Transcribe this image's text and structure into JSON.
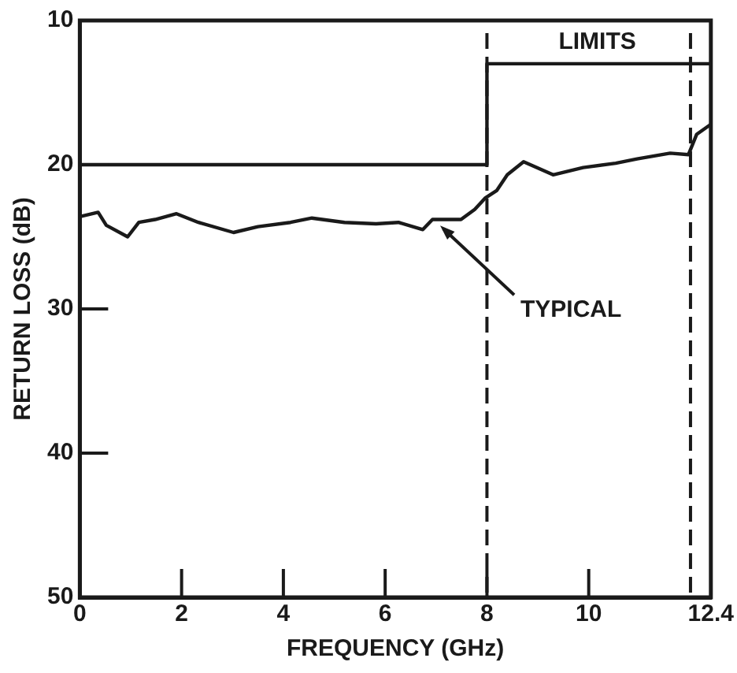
{
  "chart_data": {
    "type": "line",
    "xlabel": "FREQUENCY (GHz)",
    "ylabel": "RETURN LOSS (dB)",
    "xlim": [
      0,
      12.4
    ],
    "xticks": [
      0,
      2,
      4,
      6,
      8,
      10,
      12.4
    ],
    "ylim": [
      50,
      10
    ],
    "yticks": [
      10,
      20,
      30,
      40,
      50
    ],
    "grid": false,
    "legend": false,
    "marker": "none",
    "line_style": "solid",
    "series": [
      {
        "color": "#1a1a1a",
        "x": [
          0,
          0.36,
          0.52,
          0.94,
          1.16,
          1.48,
          1.9,
          2.33,
          3.02,
          3.5,
          4.14,
          4.56,
          5.2,
          5.82,
          6.26,
          6.74,
          6.93,
          7.49,
          7.76,
          7.97,
          8.19,
          8.4,
          8.72,
          9.3,
          9.89,
          10.53,
          10.95,
          11.6,
          11.96,
          12.12,
          12.4
        ],
        "values": [
          23.6,
          23.3,
          24.2,
          25.0,
          24.0,
          23.8,
          23.4,
          24.0,
          24.7,
          24.3,
          24.0,
          23.7,
          24.0,
          24.1,
          24.0,
          24.5,
          23.8,
          23.8,
          23.1,
          22.3,
          21.8,
          20.7,
          19.8,
          20.7,
          20.2,
          19.9,
          19.6,
          19.2,
          19.3,
          17.9,
          17.2
        ]
      },
      {
        "color": "#1a1a1a",
        "x": [
          0,
          8,
          8,
          12.4
        ],
        "values": [
          20,
          20,
          13,
          13
        ]
      }
    ],
    "ref_lines": [
      {
        "axis": "x",
        "value": 8,
        "line_style": "dashed",
        "color": "#1a1a1a"
      },
      {
        "axis": "x",
        "value": 12,
        "line_style": "dashed",
        "color": "#1a1a1a"
      }
    ],
    "annotations": [
      "LIMITS",
      {
        "text": "TYPICAL",
        "x": 7.05,
        "y": 24.0
      }
    ]
  }
}
